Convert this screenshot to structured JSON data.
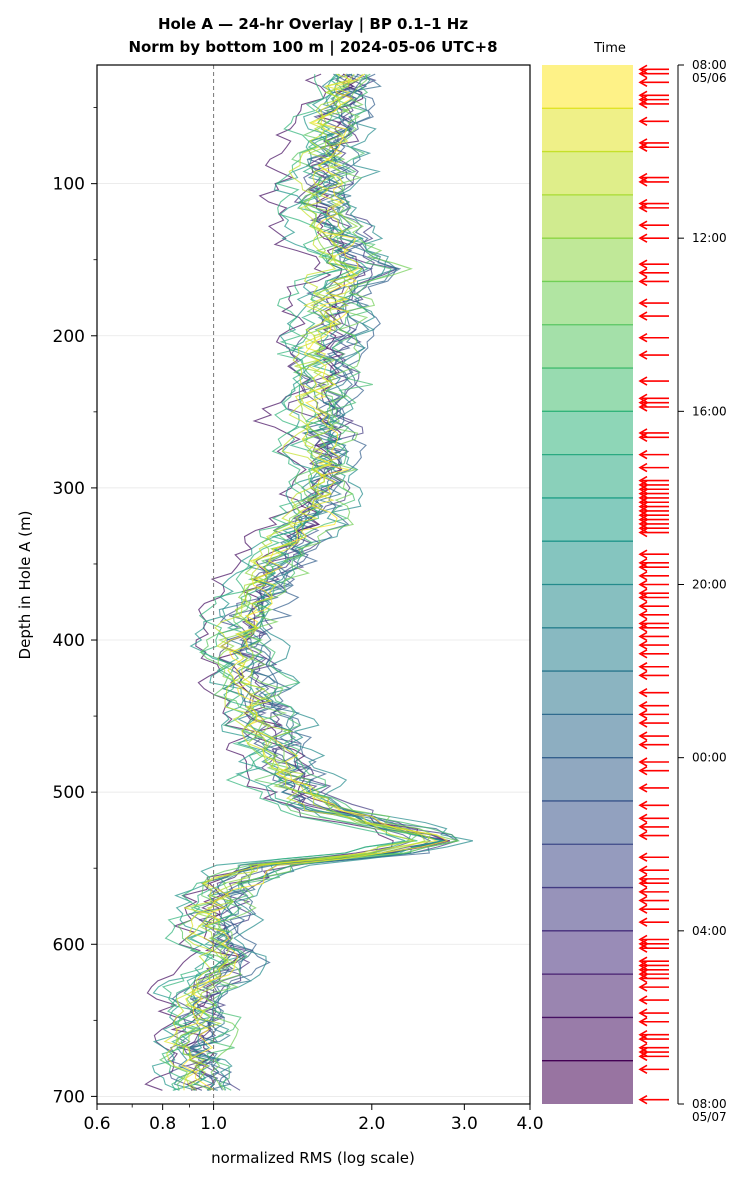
{
  "chart_data": {
    "type": "line",
    "title_line1": "Hole A — 24-hr Overlay  |  BP 0.1–1 Hz",
    "title_line2": "Norm by bottom 100 m  |  2024-05-06 UTC+8",
    "xlabel": "normalized RMS  (log scale)",
    "ylabel": "Depth in Hole A (m)",
    "x_scale": "log",
    "xlim": [
      0.6,
      4.0
    ],
    "ylim": [
      705,
      22
    ],
    "x_ticks": [
      0.6,
      0.8,
      1.0,
      2.0,
      3.0,
      4.0
    ],
    "x_tick_labels": [
      "0.6",
      "0.8",
      "1.0",
      "2.0",
      "3.0",
      "4.0"
    ],
    "y_ticks": [
      100,
      200,
      300,
      400,
      500,
      600,
      700
    ],
    "y_tick_labels": [
      "100",
      "200",
      "300",
      "400",
      "500",
      "600",
      "700"
    ],
    "reference_line_x": 1.0,
    "grid": "horizontal",
    "series_count": 24,
    "series_depth_range": [
      28,
      696
    ],
    "series_style": "24 hourly traces colored by time (viridis), semi-transparent",
    "median_profile": [
      [
        28,
        1.7
      ],
      [
        60,
        1.6
      ],
      [
        90,
        1.55
      ],
      [
        110,
        1.5
      ],
      [
        130,
        1.6
      ],
      [
        150,
        1.7
      ],
      [
        155,
        1.85
      ],
      [
        170,
        1.6
      ],
      [
        200,
        1.55
      ],
      [
        250,
        1.5
      ],
      [
        290,
        1.55
      ],
      [
        310,
        1.5
      ],
      [
        340,
        1.3
      ],
      [
        360,
        1.2
      ],
      [
        380,
        1.1
      ],
      [
        400,
        1.05
      ],
      [
        430,
        1.1
      ],
      [
        460,
        1.2
      ],
      [
        490,
        1.3
      ],
      [
        510,
        1.5
      ],
      [
        525,
        2.2
      ],
      [
        532,
        2.5
      ],
      [
        540,
        2.0
      ],
      [
        548,
        1.2
      ],
      [
        560,
        1.0
      ],
      [
        590,
        0.93
      ],
      [
        610,
        1.0
      ],
      [
        630,
        0.88
      ],
      [
        650,
        0.9
      ],
      [
        670,
        0.85
      ],
      [
        696,
        0.9
      ]
    ]
  },
  "colorbar": {
    "label": "Time",
    "tick_labels": [
      {
        "hour": 0,
        "text": "08:00",
        "sub": "05/06"
      },
      {
        "hour": 4,
        "text": "12:00",
        "sub": ""
      },
      {
        "hour": 8,
        "text": "16:00",
        "sub": ""
      },
      {
        "hour": 12,
        "text": "20:00",
        "sub": ""
      },
      {
        "hour": 16,
        "text": "00:00",
        "sub": ""
      },
      {
        "hour": 20,
        "text": "04:00",
        "sub": ""
      },
      {
        "hour": 24,
        "text": "08:00",
        "sub": "05/07"
      }
    ],
    "colormap": "viridis",
    "levels": 24,
    "event_arrow_color": "#ff0000",
    "event_hours": [
      0.1,
      0.2,
      0.4,
      0.7,
      0.8,
      0.9,
      1.3,
      1.8,
      1.9,
      2.6,
      2.7,
      3.2,
      3.3,
      3.7,
      4.0,
      4.6,
      4.8,
      5.0,
      5.5,
      5.8,
      6.3,
      6.7,
      7.3,
      7.7,
      7.8,
      7.9,
      8.5,
      8.6,
      9.0,
      9.3,
      9.6,
      9.7,
      9.8,
      9.9,
      10.0,
      10.1,
      10.2,
      10.3,
      10.4,
      10.5,
      10.6,
      10.7,
      10.8,
      11.3,
      11.5,
      11.6,
      11.8,
      12.0,
      12.2,
      12.3,
      12.5,
      12.7,
      12.9,
      13.0,
      13.2,
      13.4,
      13.6,
      13.9,
      14.1,
      14.5,
      14.8,
      15.0,
      15.2,
      15.5,
      15.7,
      16.1,
      16.3,
      16.7,
      17.1,
      17.4,
      17.6,
      17.8,
      18.3,
      18.6,
      18.8,
      18.9,
      19.1,
      19.3,
      19.5,
      19.8,
      20.2,
      20.3,
      20.4,
      20.7,
      20.8,
      20.9,
      21.0,
      21.1,
      21.3,
      21.6,
      21.9,
      22.1,
      22.4,
      22.5,
      22.7,
      22.8,
      22.9,
      23.2,
      23.9
    ]
  }
}
